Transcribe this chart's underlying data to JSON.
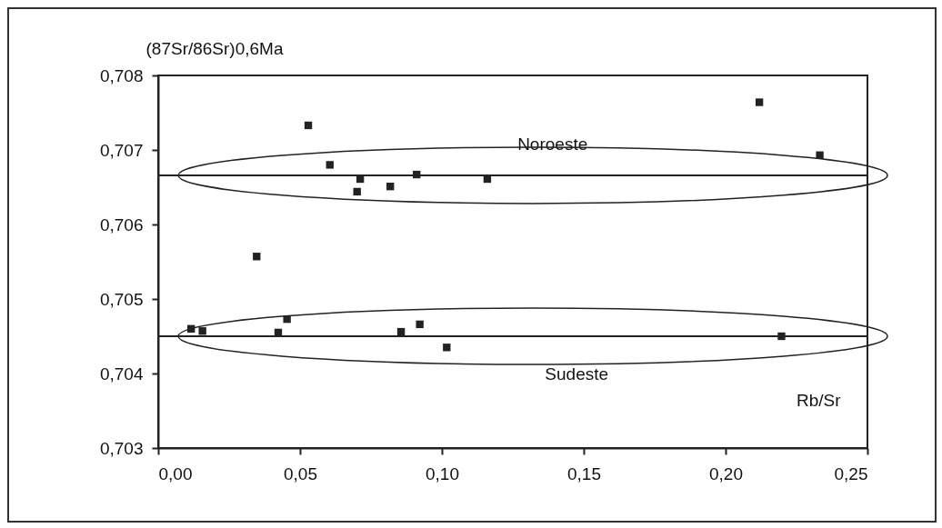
{
  "chart_data": {
    "type": "scatter",
    "xlabel": "Rb/Sr",
    "ylabel": "(87Sr/86Sr)0,6Ma",
    "x": [
      0.0529,
      0.0605,
      0.0712,
      0.0701,
      0.0818,
      0.0911,
      0.116,
      0.0347,
      0.0116,
      0.0156,
      0.0454,
      0.0423,
      0.0856,
      0.0922,
      0.1017,
      0.2119,
      0.2332,
      0.2197
    ],
    "series": [
      {
        "color": "#222222",
        "values": [
          0.70733,
          0.7068,
          0.70661,
          0.70644,
          0.70651,
          0.70667,
          0.70661,
          0.70557,
          0.7046,
          0.70457,
          0.70473,
          0.70455,
          0.70456,
          0.70466,
          0.70435,
          0.70764,
          0.70693,
          0.7045
        ]
      }
    ],
    "marker": "square",
    "xlim": [
      0,
      0.25
    ],
    "xticks": [
      {
        "value": 0,
        "label": "0,00"
      },
      {
        "value": 0.05,
        "label": "0,05"
      },
      {
        "value": 0.1,
        "label": "0,10"
      },
      {
        "value": 0.15,
        "label": "0,15"
      },
      {
        "value": 0.2,
        "label": "0,20"
      },
      {
        "value": 0.25,
        "label": "0,25"
      }
    ],
    "ylim": [
      0.703,
      0.708
    ],
    "yticks": [
      {
        "value": 0.703,
        "label": "0,703"
      },
      {
        "value": 0.704,
        "label": "0,704"
      },
      {
        "value": 0.705,
        "label": "0,705"
      },
      {
        "value": 0.706,
        "label": "0,706"
      },
      {
        "value": 0.707,
        "label": "0,707"
      },
      {
        "value": 0.708,
        "label": "0,708"
      }
    ],
    "ref_lines": [
      {
        "axis": "y",
        "value": 0.70666,
        "label": "Noroeste"
      },
      {
        "axis": "y",
        "value": 0.7045,
        "label": "Sudeste"
      }
    ],
    "grid": false
  }
}
